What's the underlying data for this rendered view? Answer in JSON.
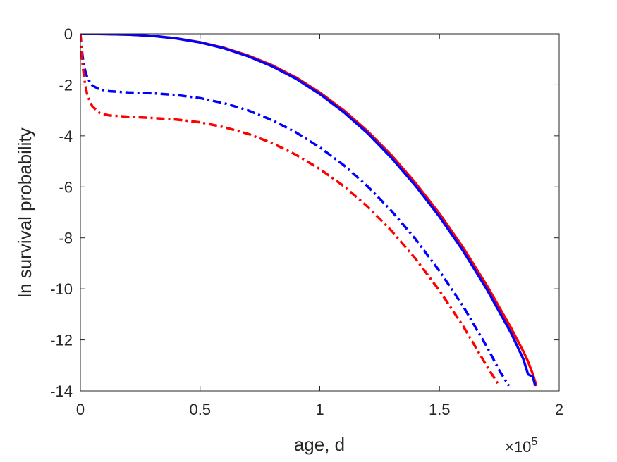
{
  "chart_data": {
    "type": "line",
    "title": "",
    "xlabel": "age, d",
    "ylabel": "ln survival probability",
    "x_multiplier": {
      "base": "×10",
      "exponent": "5"
    },
    "xlim": [
      0,
      2
    ],
    "ylim": [
      -14,
      0
    ],
    "x_ticks": [
      0,
      0.5,
      1,
      1.5,
      2
    ],
    "x_tick_labels": [
      "0",
      "0.5",
      "1",
      "1.5",
      "2"
    ],
    "y_ticks": [
      0,
      -2,
      -4,
      -6,
      -8,
      -10,
      -12,
      -14
    ],
    "y_tick_labels": [
      "0",
      "-2",
      "-4",
      "-6",
      "-8",
      "-10",
      "-12",
      "-14"
    ],
    "grid": false,
    "legend": "none",
    "series": [
      {
        "color": "#ff0000",
        "style": "solid",
        "x": [
          0,
          0.1,
          0.2,
          0.3,
          0.4,
          0.5,
          0.6,
          0.7,
          0.8,
          0.9,
          1.0,
          1.1,
          1.2,
          1.3,
          1.4,
          1.5,
          1.6,
          1.7,
          1.8,
          1.85,
          1.87,
          1.89,
          1.905
        ],
        "y": [
          0,
          -0.01,
          -0.03,
          -0.08,
          -0.18,
          -0.33,
          -0.55,
          -0.85,
          -1.23,
          -1.71,
          -2.3,
          -3.0,
          -3.82,
          -4.77,
          -5.85,
          -7.05,
          -8.4,
          -9.9,
          -11.55,
          -12.45,
          -12.85,
          -13.35,
          -13.8
        ]
      },
      {
        "color": "#0000ff",
        "style": "solid",
        "x": [
          0,
          0.1,
          0.2,
          0.3,
          0.4,
          0.5,
          0.6,
          0.7,
          0.8,
          0.9,
          1.0,
          1.1,
          1.2,
          1.3,
          1.4,
          1.5,
          1.6,
          1.7,
          1.8,
          1.85,
          1.87,
          1.89,
          1.9
        ],
        "y": [
          0,
          -0.01,
          -0.03,
          -0.08,
          -0.18,
          -0.34,
          -0.57,
          -0.88,
          -1.27,
          -1.76,
          -2.36,
          -3.07,
          -3.9,
          -4.87,
          -5.96,
          -7.17,
          -8.53,
          -10.05,
          -11.75,
          -12.75,
          -13.35,
          -13.45,
          -13.8
        ]
      },
      {
        "color": "#0000ff",
        "style": "dashdot",
        "x": [
          0,
          0.005,
          0.01,
          0.02,
          0.03,
          0.05,
          0.08,
          0.12,
          0.2,
          0.3,
          0.4,
          0.5,
          0.6,
          0.7,
          0.8,
          0.9,
          1.0,
          1.1,
          1.2,
          1.3,
          1.4,
          1.5,
          1.6,
          1.7,
          1.75,
          1.79
        ],
        "y": [
          0,
          -0.55,
          -0.95,
          -1.45,
          -1.75,
          -2.03,
          -2.18,
          -2.25,
          -2.3,
          -2.33,
          -2.4,
          -2.52,
          -2.72,
          -3.0,
          -3.38,
          -3.86,
          -4.45,
          -5.15,
          -5.98,
          -6.95,
          -8.05,
          -9.3,
          -10.7,
          -12.3,
          -13.2,
          -13.8
        ]
      },
      {
        "color": "#ff0000",
        "style": "dashdot",
        "x": [
          0,
          0.005,
          0.01,
          0.02,
          0.03,
          0.05,
          0.08,
          0.12,
          0.2,
          0.3,
          0.4,
          0.5,
          0.6,
          0.7,
          0.8,
          0.9,
          1.0,
          1.1,
          1.2,
          1.3,
          1.4,
          1.5,
          1.6,
          1.7,
          1.75
        ],
        "y": [
          0,
          -0.75,
          -1.3,
          -2.0,
          -2.45,
          -2.85,
          -3.1,
          -3.2,
          -3.25,
          -3.3,
          -3.36,
          -3.47,
          -3.66,
          -3.92,
          -4.28,
          -4.74,
          -5.3,
          -5.97,
          -6.78,
          -7.73,
          -8.82,
          -10.07,
          -11.48,
          -13.06,
          -13.8
        ]
      }
    ]
  }
}
